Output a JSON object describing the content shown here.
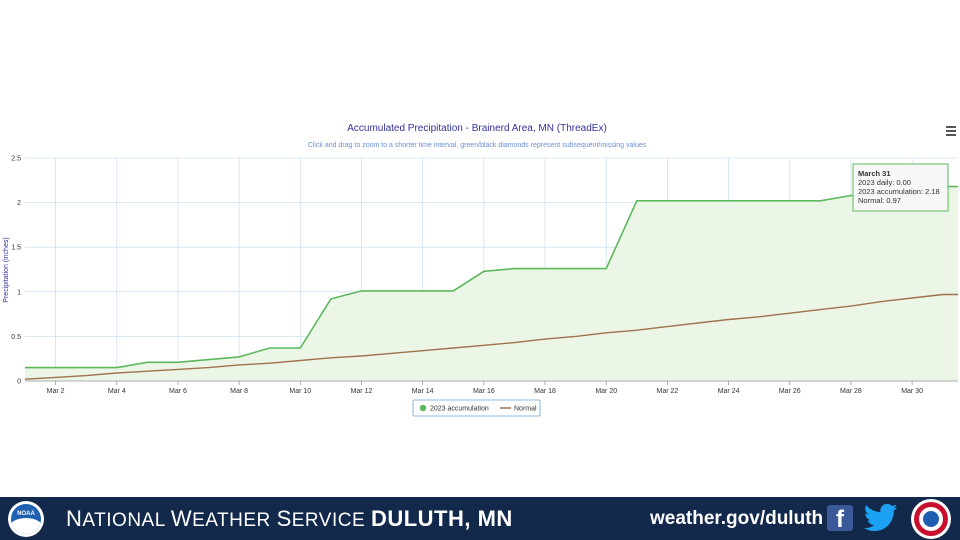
{
  "chart_data": {
    "type": "area",
    "title": "Accumulated Precipitation - Brainerd Area, MN (ThreadEx)",
    "subtitle": "Click and drag to zoom to a shorter time interval, green/black diamonds represent subsequent/missing values",
    "ylabel": "Precipitation (inches)",
    "xlabel": "",
    "x_range": [
      1,
      31.5
    ],
    "ylim": [
      0,
      2.5
    ],
    "yticks": [
      "0",
      "0.5",
      "1",
      "1.5",
      "2",
      "2.5"
    ],
    "xticks": [
      "Mar 2",
      "Mar 4",
      "Mar 6",
      "Mar 8",
      "Mar 10",
      "Mar 12",
      "Mar 14",
      "Mar 16",
      "Mar 18",
      "Mar 20",
      "Mar 22",
      "Mar 24",
      "Mar 26",
      "Mar 28",
      "Mar 30"
    ],
    "grid": true,
    "legend_position": "bottom-center",
    "series": [
      {
        "name": "2023 accumulation",
        "color": "#5cb85c",
        "fill": "#eaf5e3",
        "x": [
          1,
          2,
          3,
          4,
          5,
          6,
          7,
          8,
          9,
          10,
          11,
          12,
          13,
          14,
          15,
          16,
          17,
          18,
          19,
          20,
          21,
          22,
          23,
          24,
          25,
          26,
          27,
          28,
          29,
          30,
          31,
          31.5
        ],
        "values": [
          0.15,
          0.15,
          0.15,
          0.15,
          0.21,
          0.21,
          0.24,
          0.27,
          0.37,
          0.37,
          0.92,
          1.01,
          1.01,
          1.01,
          1.01,
          1.23,
          1.26,
          1.26,
          1.26,
          1.26,
          2.02,
          2.02,
          2.02,
          2.02,
          2.02,
          2.02,
          2.02,
          2.08,
          2.08,
          2.08,
          2.18,
          2.18
        ]
      },
      {
        "name": "Normal",
        "color": "#a0714f",
        "x": [
          1,
          2,
          3,
          4,
          5,
          6,
          7,
          8,
          9,
          10,
          11,
          12,
          13,
          14,
          15,
          16,
          17,
          18,
          19,
          20,
          21,
          22,
          23,
          24,
          25,
          26,
          27,
          28,
          29,
          30,
          31,
          31.5
        ],
        "values": [
          0.02,
          0.04,
          0.06,
          0.09,
          0.11,
          0.13,
          0.15,
          0.18,
          0.2,
          0.23,
          0.26,
          0.28,
          0.31,
          0.34,
          0.37,
          0.4,
          0.43,
          0.47,
          0.5,
          0.54,
          0.57,
          0.61,
          0.65,
          0.69,
          0.72,
          0.76,
          0.8,
          0.84,
          0.89,
          0.93,
          0.97,
          0.97
        ]
      }
    ],
    "tooltip": {
      "title": "March 31",
      "lines": [
        "2023 daily: 0.00",
        "2023 accumulation: 2.18",
        "Normal: 0.97"
      ]
    }
  },
  "footer": {
    "org_prefix_N": "N",
    "org_rest_1": "ATIONAL ",
    "org_prefix_W": "W",
    "org_rest_2": "EATHER ",
    "org_prefix_S": "S",
    "org_rest_3": "ERVICE ",
    "office": "DULUTH, MN",
    "website": "weather.gov/duluth",
    "noaa_logo_text": "NOAA",
    "icons": [
      "noaa-logo",
      "facebook-icon",
      "twitter-icon",
      "nws-logo"
    ]
  }
}
